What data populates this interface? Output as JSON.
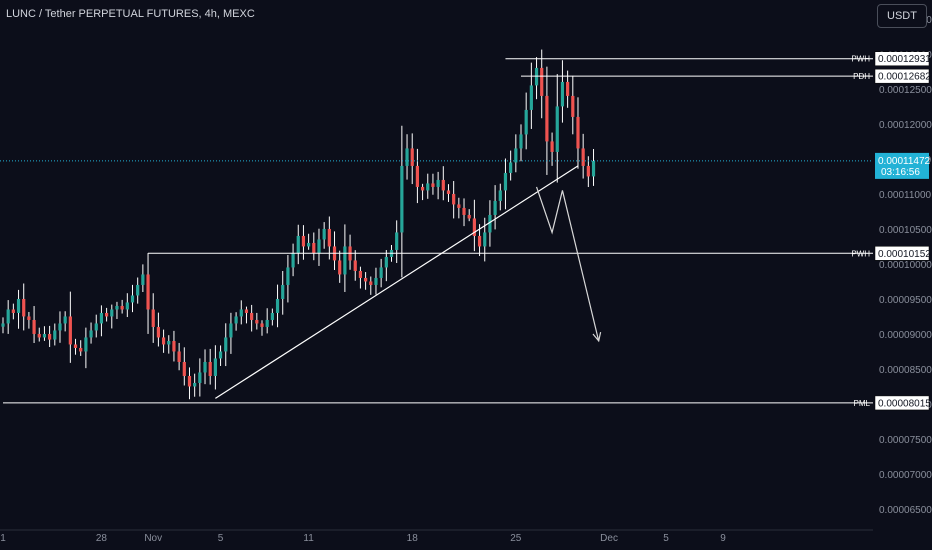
{
  "header": {
    "symbol_title": "LUNC / Tether PERPETUAL FUTURES, 4h, MEXC",
    "currency_button": "USDT"
  },
  "colors": {
    "background": "#0c0e1a",
    "up_candle": "#26a69a",
    "down_candle": "#ef5350",
    "wick": "#ffffff",
    "drawing": "#ffffff",
    "current_price": "#22b2d6",
    "axis_text": "#8a8f9c"
  },
  "chart_data": {
    "type": "candlestick",
    "timeframe": "4h",
    "y_axis": {
      "min": 6.2e-05,
      "max": 0.0001377,
      "ticks": [
        "0.00013500",
        "0.00013000",
        "0.00012500",
        "0.00012000",
        "0.00011500",
        "0.00011000",
        "0.00010500",
        "0.00010000",
        "0.00009500",
        "0.00009000",
        "0.00008500",
        "0.00008000",
        "0.00007500",
        "0.00007000",
        "0.00006500"
      ],
      "tick_values": [
        0.000135,
        0.00013,
        0.000125,
        0.00012,
        0.000115,
        0.00011,
        0.000105,
        0.0001,
        9.5e-05,
        9e-05,
        8.5e-05,
        8e-05,
        7.5e-05,
        7e-05,
        6.5e-05
      ]
    },
    "x_axis": {
      "ticks": [
        {
          "label": "1",
          "index": 0
        },
        {
          "label": "28",
          "index": 19
        },
        {
          "label": "Nov",
          "index": 29
        },
        {
          "label": "5",
          "index": 42
        },
        {
          "label": "11",
          "index": 59
        },
        {
          "label": "18",
          "index": 79
        },
        {
          "label": "25",
          "index": 99
        },
        {
          "label": "Dec",
          "index": 117
        },
        {
          "label": "5",
          "index": 128
        },
        {
          "label": "9",
          "index": 139
        }
      ]
    },
    "closes": [
      9.15e-05,
      9.35e-05,
      9.3e-05,
      9.5e-05,
      9.25e-05,
      9.2e-05,
      9e-05,
      8.95e-05,
      9e-05,
      8.92e-05,
      9.05e-05,
      9.15e-05,
      9.25e-05,
      8.85e-05,
      8.8e-05,
      8.75e-05,
      8.95e-05,
      9.05e-05,
      9.15e-05,
      9.3e-05,
      9.25e-05,
      9.35e-05,
      9.4e-05,
      9.35e-05,
      9.45e-05,
      9.55e-05,
      9.7e-05,
      9.85e-05,
      9.35e-05,
      9.1e-05,
      8.95e-05,
      8.85e-05,
      8.9e-05,
      8.75e-05,
      8.6e-05,
      8.4e-05,
      8.25e-05,
      8.3e-05,
      8.45e-05,
      8.6e-05,
      8.4e-05,
      8.65e-05,
      8.75e-05,
      8.95e-05,
      9.15e-05,
      9.25e-05,
      9.35e-05,
      9.3e-05,
      9.2e-05,
      9.15e-05,
      9.1e-05,
      9.2e-05,
      9.3e-05,
      9.5e-05,
      9.7e-05,
      9.95e-05,
      0.0001015,
      0.000104,
      0.0001025,
      0.000103,
      0.0001015,
      0.0001035,
      0.000105,
      0.0001025,
      0.0001005,
      9.85e-05,
      0.0001025,
      0.0001005,
      9.9e-05,
      9.8e-05,
      9.75e-05,
      9.7e-05,
      9.8e-05,
      9.95e-05,
      0.000101,
      0.000102,
      0.0001045,
      0.000114,
      0.0001165,
      0.000114,
      0.000111,
      0.0001105,
      0.0001115,
      0.000111,
      0.000112,
      0.0001105,
      0.00011,
      0.0001085,
      0.000108,
      0.000107,
      0.0001065,
      0.000104,
      0.0001025,
      0.0001045,
      0.000107,
      0.000109,
      0.0001105,
      0.000113,
      0.0001145,
      0.0001165,
      0.0001185,
      0.000122,
      0.0001255,
      0.000128,
      0.000124,
      0.0001175,
      0.000116,
      0.0001225,
      0.000126,
      0.000124,
      0.000121,
      0.0001165,
      0.000114,
      0.0001125,
      0.0001147
    ],
    "current_price": {
      "value": "0.00011472",
      "countdown": "03:16:56",
      "raw": 0.00011472
    },
    "levels": [
      {
        "label": "PWH",
        "value": "0.00012931",
        "raw": 0.00012931,
        "from_index": 97
      },
      {
        "label": "PDH",
        "value": "0.00012682",
        "raw": 0.00012682,
        "from_index": 100
      },
      {
        "label": "PWH",
        "value": "0.00010152",
        "raw": 0.00010152,
        "from_index": 28
      },
      {
        "label": "PML",
        "value": "0.00008015",
        "raw": 8.015e-05,
        "from_index": 0
      }
    ],
    "trendline": {
      "from": {
        "index": 41,
        "price": 8.08e-05
      },
      "to": {
        "index": 111,
        "price": 0.000114
      }
    },
    "projection_path": [
      {
        "index": 103,
        "price": 0.000111
      },
      {
        "index": 106,
        "price": 0.0001045
      },
      {
        "index": 108,
        "price": 0.0001105
      },
      {
        "index": 115,
        "price": 8.9e-05
      }
    ]
  }
}
